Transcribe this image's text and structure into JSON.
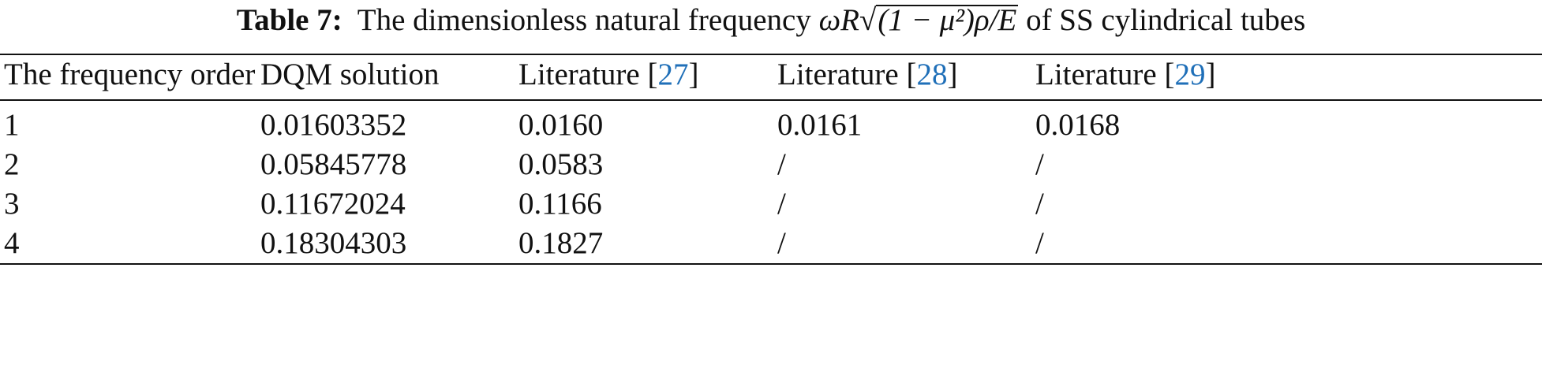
{
  "caption": {
    "label": "Table 7:",
    "text_before": "The dimensionless natural frequency",
    "formula": {
      "prefix": "ωR",
      "radicand": "(1 − μ²)ρ/E"
    },
    "text_after": "of SS cylindrical tubes"
  },
  "table": {
    "columns": [
      {
        "text": "The frequency order"
      },
      {
        "text": "DQM solution"
      },
      {
        "text": "Literature [",
        "ref": "27",
        "close": "]"
      },
      {
        "text": "Literature [",
        "ref": "28",
        "close": "]"
      },
      {
        "text": "Literature [",
        "ref": "29",
        "close": "]"
      }
    ],
    "rows": [
      [
        "1",
        "0.01603352",
        "0.0160",
        "0.0161",
        "0.0168"
      ],
      [
        "2",
        "0.05845778",
        "0.0583",
        "/",
        "/"
      ],
      [
        "3",
        "0.11672024",
        "0.1166",
        "/",
        "/"
      ],
      [
        "4",
        "0.18304303",
        "0.1827",
        "/",
        "/"
      ]
    ]
  }
}
